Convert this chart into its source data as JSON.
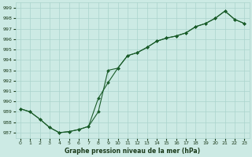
{
  "xlabel": "Graphe pression niveau de la mer (hPa)",
  "ylim": [
    986.5,
    999.5
  ],
  "xlim": [
    -0.5,
    23.5
  ],
  "xticks": [
    0,
    1,
    2,
    3,
    4,
    5,
    6,
    7,
    8,
    9,
    10,
    11,
    12,
    13,
    14,
    15,
    16,
    17,
    18,
    19,
    20,
    21,
    22,
    23
  ],
  "yticks": [
    987,
    988,
    989,
    990,
    991,
    992,
    993,
    994,
    995,
    996,
    997,
    998,
    999
  ],
  "bg_color": "#cceae4",
  "grid_color": "#aad4cc",
  "line_color": "#1a5c2a",
  "series1_y": [
    989.3,
    989.0,
    988.3,
    987.5,
    987.0,
    987.1,
    987.3,
    987.6,
    989.0,
    993.0,
    993.2,
    994.4,
    994.7,
    995.2,
    995.8,
    996.1,
    996.3,
    996.6,
    997.2,
    997.5,
    998.0,
    998.7,
    997.9,
    997.5
  ],
  "series2_y": [
    989.3,
    989.0,
    988.3,
    987.5,
    987.0,
    987.1,
    987.3,
    987.6,
    990.3,
    991.8,
    993.2,
    994.4,
    994.7,
    995.2,
    995.8,
    996.1,
    996.3,
    996.6,
    997.2,
    997.5,
    998.0,
    998.7,
    997.9,
    997.5
  ],
  "marker": "D",
  "marker_size": 2.0,
  "linewidth": 0.8,
  "font_color": "#1a3a1a",
  "xlabel_fontsize": 5.5,
  "tick_fontsize": 4.5
}
